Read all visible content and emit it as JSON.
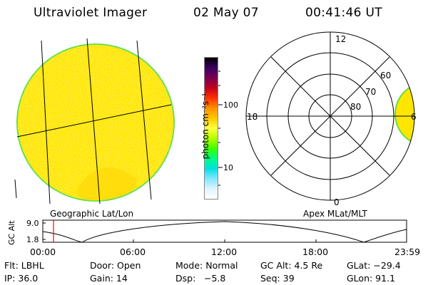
{
  "header": {
    "instrument": "Ultraviolet Imager",
    "date": "02 May 07",
    "time": "00:41:46 UT"
  },
  "colorbar": {
    "unit_label": "photon cm⁻²s⁻¹",
    "tick_100": "100",
    "tick_10": "10",
    "colors": [
      "#000000",
      "#3a0060",
      "#7a0050",
      "#c00020",
      "#ff3000",
      "#ff9000",
      "#ffc800",
      "#ffff40",
      "#b4ff00",
      "#40ff00",
      "#00ff80",
      "#00e0e0",
      "#80e8ff",
      "#e0f4ff",
      "#ffffff"
    ]
  },
  "left_panel": {
    "caption": "Geographic Lat/Lon",
    "fill_color": "#ffe600"
  },
  "right_panel": {
    "caption": "Apex MLat/MLT",
    "mlt_labels": {
      "top": "12",
      "left": "18",
      "right": "6",
      "bottom": "0"
    },
    "lat_labels": {
      "r80": "80",
      "r70": "70",
      "r60": "60"
    }
  },
  "altitude_plot": {
    "ylabel": "GC Alt",
    "ytick_top": "9.0",
    "ytick_bottom": "1.8",
    "time_ticks": [
      "00:00",
      "06:00",
      "12:00",
      "18:00",
      "23:59"
    ],
    "marker_color": "#ff0000"
  },
  "info": {
    "row1": {
      "filter": "Flt: LBHL",
      "door": "Door: Open",
      "mode": "Mode: Normal",
      "gc_alt": "GC Alt: 4.5 Re",
      "glat": "GLat: −29.4"
    },
    "row2": {
      "ip": "IP: 36.0",
      "gain": "Gain: 14",
      "dsp_label": "Dsp:",
      "dsp_value": "−5.8",
      "seq": "Seq: 39",
      "glon": "GLon: 91.1"
    }
  }
}
